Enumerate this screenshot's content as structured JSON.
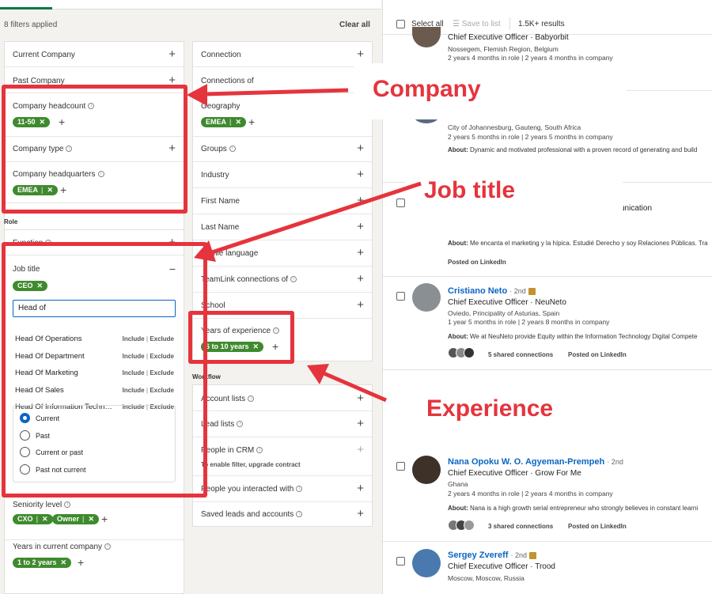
{
  "header": {
    "filters_applied": "8 filters applied",
    "clear_all": "Clear all"
  },
  "left_col": {
    "current_company": "Current Company",
    "past_company": "Past Company",
    "company_headcount": "Company headcount",
    "headcount_chip": "11-50",
    "company_type": "Company type",
    "company_hq": "Company headquarters",
    "hq_chip": "EMEA",
    "role_section": "Role",
    "function": "Function",
    "job_title": "Job title",
    "job_title_chip": "CEO",
    "job_title_input": "Head of",
    "suggestions": [
      "Head Of Operations",
      "Head Of Department",
      "Head Of Marketing",
      "Head Of Sales",
      "Head Of Information Techn…"
    ],
    "include": "Include",
    "exclude": "Exclude",
    "radio_options": [
      "Current",
      "Past",
      "Current or past",
      "Past not current"
    ],
    "radio_selected": "Current",
    "seniority_level": "Seniority level",
    "seniority_chips": [
      "CXO",
      "Owner"
    ],
    "years_in_company": "Years in current company",
    "years_company_chip": "1 to 2 years"
  },
  "mid_col": {
    "connection": "Connection",
    "connections_of": "Connections of",
    "geography": "Geography",
    "geo_chip": "EMEA",
    "groups": "Groups",
    "industry": "Industry",
    "first_name": "First Name",
    "last_name": "Last Name",
    "profile_language": "Profile language",
    "teamlink": "TeamLink connections of",
    "school": "School",
    "years_experience": "Years of experience",
    "experience_chip": "6 to 10 years",
    "workflow_section": "Workflow",
    "account_lists": "Account lists",
    "lead_lists": "Lead lists",
    "people_in_crm": "People in CRM",
    "crm_note": "To enable filter, upgrade contract",
    "people_interacted": "People you interacted with",
    "saved_leads": "Saved leads and accounts"
  },
  "results": {
    "select_all": "Select all",
    "save_to_list": "Save to list",
    "count": "1.5K+ results",
    "items": [
      {
        "name": "",
        "title": "Chief Executive Officer · Babyorbit",
        "loc": "Nossegem, Flemish Region, Belgium",
        "meta": "2 years 4 months in role | 2 years 4 months in company"
      },
      {
        "loc": "City of Johannesburg, Gauteng, South Africa",
        "meta": "2 years 5 months in role | 2 years 5 months in company",
        "about_label": "About:",
        "about": "Dynamic and motivated professional with a proven record of generating and build"
      },
      {
        "title_fragment": "unication",
        "about_label": "About:",
        "about": "Me encanta el marketing y la hípica. Estudié Derecho y soy Relaciones Públicas. Tra",
        "posted": "Posted on LinkedIn"
      },
      {
        "name": "Cristiano Neto",
        "degree": "· 2nd",
        "title": "Chief Executive Officer · NeuNeto",
        "loc": "Oviedo, Principality of Asturias, Spain",
        "meta": "1 year 5 months in role | 2 years 8 months in company",
        "about_label": "About:",
        "about": "We at NeuNeto provide Equity within the Information Technology Digital Compete",
        "shared": "5 shared connections",
        "posted": "Posted on LinkedIn"
      },
      {
        "name": "Nana Opoku W. O. Agyeman-Prempeh",
        "degree": "· 2nd",
        "title": "Chief Executive Officer · Grow For Me",
        "loc": "Ghana",
        "meta": "2 years 4 months in role | 2 years 4 months in company",
        "about_label": "About:",
        "about": "Nana is a high growth serial entrepreneur who strongly believes in constant learni",
        "shared": "3 shared connections",
        "posted": "Posted on LinkedIn"
      },
      {
        "name": "Sergey Zvereff",
        "degree": "· 2nd",
        "title": "Chief Executive Officer · Trood",
        "loc": "Moscow, Moscow, Russia"
      }
    ]
  },
  "annotations": {
    "company": "Company",
    "job_title": "Job title",
    "experience": "Experience"
  },
  "colors": {
    "annotation_red": "#e5343d",
    "chip_green": "#3f8a2e",
    "link_blue": "#0a66c2"
  }
}
